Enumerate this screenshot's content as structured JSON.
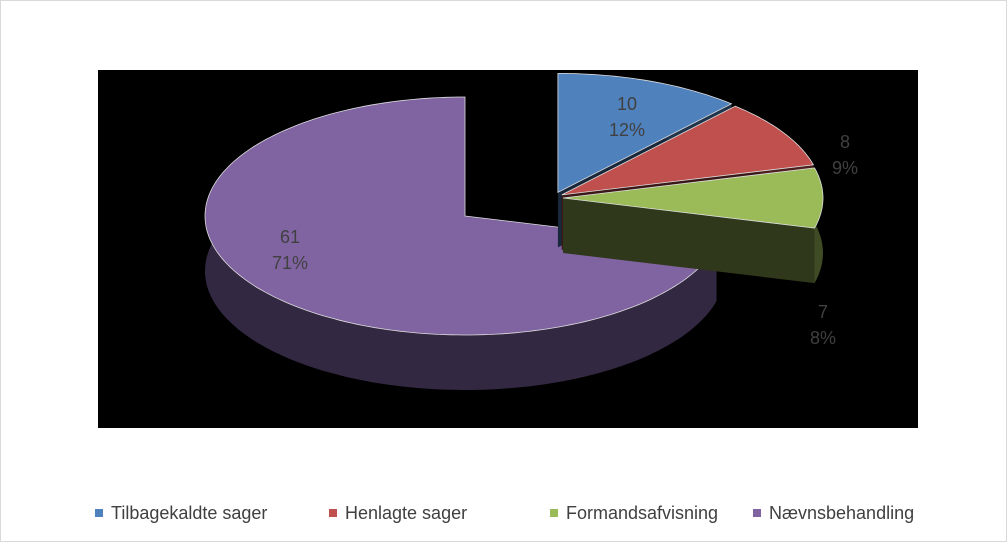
{
  "chart_data": {
    "type": "pie",
    "three_d": true,
    "categories": [
      "Tilbagekaldte sager",
      "Henlagte sager",
      "Formandsafvisning",
      "Nævnsbehandling"
    ],
    "values": [
      10,
      8,
      7,
      61
    ],
    "percent_labels": [
      "12%",
      "9%",
      "8%",
      "71%"
    ],
    "colors": [
      "#4f81bd",
      "#c0504d",
      "#9bbb59",
      "#8064a2"
    ],
    "legend": "bottom"
  }
}
